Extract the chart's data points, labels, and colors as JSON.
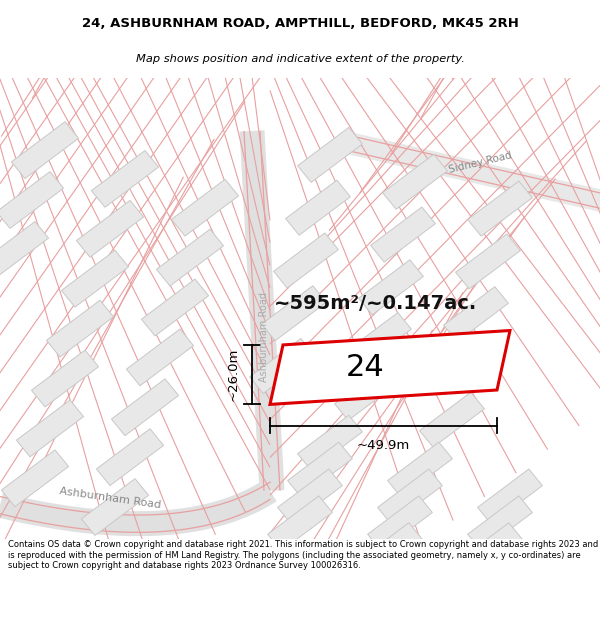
{
  "title_line1": "24, ASHBURNHAM ROAD, AMPTHILL, BEDFORD, MK45 2RH",
  "title_line2": "Map shows position and indicative extent of the property.",
  "footer_text": "Contains OS data © Crown copyright and database right 2021. This information is subject to Crown copyright and database rights 2023 and is reproduced with the permission of HM Land Registry. The polygons (including the associated geometry, namely x, y co-ordinates) are subject to Crown copyright and database rights 2023 Ordnance Survey 100026316.",
  "map_bg": "#ffffff",
  "road_line_color": "#e8a0a0",
  "building_fill": "#e8e8e8",
  "building_outline": "#d0d0d0",
  "building_outline2": "#e8b0b0",
  "highlight_fill": "#ffffff",
  "highlight_outline": "#dd0000",
  "highlight_lw": 2.2,
  "area_text": "~595m²/~0.147ac.",
  "label_24": "24",
  "dim_width": "~49.9m",
  "dim_height": "~26.0m",
  "road_label_ashburnham": "Ashburnham Road",
  "road_label_ashburnham2": "Ashburnham Road",
  "road_label_sidney": "Sidney Road"
}
